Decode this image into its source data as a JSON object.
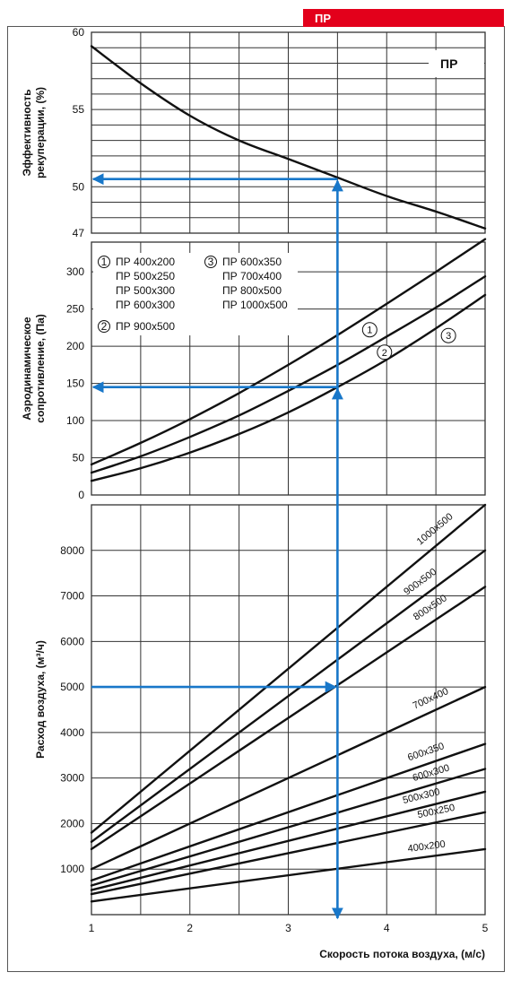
{
  "header_badge": "ПР",
  "colors": {
    "badge": "#e3001b",
    "arrow": "#1877c9",
    "curve": "#111111",
    "grid": "#333333"
  },
  "x_axis": {
    "label": "Скорость потока воздуха, (м/с)",
    "ticks": [
      "1",
      "2",
      "3",
      "4",
      "5"
    ]
  },
  "chart_data": [
    {
      "type": "line",
      "title": "ПР",
      "ylabel": [
        "Эффективность",
        "рекуперации, (%)"
      ],
      "xlim": [
        1,
        5
      ],
      "ylim": [
        47,
        60
      ],
      "y_ticks": [
        "60",
        "55",
        "50",
        "47"
      ],
      "grid": true,
      "series": [
        {
          "x": [
            1,
            1.5,
            2,
            2.5,
            3,
            3.5,
            4,
            4.5,
            5
          ],
          "y": [
            59.1,
            56.7,
            54.6,
            53.0,
            51.8,
            50.6,
            49.4,
            48.4,
            47.3
          ]
        }
      ],
      "guide": {
        "x": 3.5,
        "y": 50.5
      }
    },
    {
      "type": "line",
      "ylabel": [
        "Аэродинамическое",
        "сопротивление, (Па)"
      ],
      "xlim": [
        1,
        5
      ],
      "ylim": [
        0,
        340
      ],
      "y_ticks": [
        "300",
        "250",
        "200",
        "150",
        "100",
        "50",
        "0"
      ],
      "grid": true,
      "legend": [
        {
          "marker": "1",
          "items": [
            "ПР 400x200",
            "ПР 500x250",
            "ПР 500x300",
            "ПР 600x300"
          ]
        },
        {
          "marker": "2",
          "items": [
            "ПР 900x500"
          ]
        },
        {
          "marker": "3",
          "items": [
            "ПР 600x350",
            "ПР 700x400",
            "ПР 800x500",
            "ПР 1000x500"
          ]
        }
      ],
      "series": [
        {
          "name": "1",
          "x": [
            1,
            1.5,
            2,
            2.5,
            3,
            3.5,
            4,
            4.5,
            5
          ],
          "y": [
            41,
            70,
            102,
            137,
            175,
            215,
            257,
            300,
            344
          ]
        },
        {
          "name": "2",
          "x": [
            1,
            1.5,
            2,
            2.5,
            3,
            3.5,
            4,
            4.5,
            5
          ],
          "y": [
            30,
            52,
            78,
            107,
            140,
            175,
            213,
            252,
            294
          ]
        },
        {
          "name": "3",
          "x": [
            1,
            1.5,
            2,
            2.5,
            3,
            3.5,
            4,
            4.5,
            5
          ],
          "y": [
            19,
            36,
            57,
            82,
            111,
            145,
            182,
            224,
            269
          ]
        }
      ],
      "guide": {
        "x": 3.5,
        "y": 145
      }
    },
    {
      "type": "line",
      "ylabel": "Расход воздуха, (м³/ч)",
      "xlim": [
        1,
        5
      ],
      "ylim": [
        0,
        9000
      ],
      "y_ticks": [
        "8000",
        "7000",
        "6000",
        "5000",
        "4000",
        "3000",
        "2000",
        "1000"
      ],
      "grid": true,
      "series": [
        {
          "name": "1000x500",
          "x": [
            1,
            5
          ],
          "y": [
            1800,
            9000
          ]
        },
        {
          "name": "900x500",
          "x": [
            1,
            5
          ],
          "y": [
            1600,
            8000
          ]
        },
        {
          "name": "800x500",
          "x": [
            1,
            5
          ],
          "y": [
            1440,
            7200
          ]
        },
        {
          "name": "700x400",
          "x": [
            1,
            5
          ],
          "y": [
            1000,
            5000
          ]
        },
        {
          "name": "600x350",
          "x": [
            1,
            5
          ],
          "y": [
            750,
            3750
          ]
        },
        {
          "name": "600x300",
          "x": [
            1,
            5
          ],
          "y": [
            640,
            3200
          ]
        },
        {
          "name": "500x300",
          "x": [
            1,
            5
          ],
          "y": [
            540,
            2700
          ]
        },
        {
          "name": "500x250",
          "x": [
            1,
            5
          ],
          "y": [
            450,
            2250
          ]
        },
        {
          "name": "400x200",
          "x": [
            1,
            5
          ],
          "y": [
            290,
            1440
          ]
        }
      ],
      "guide": {
        "x": 3.5,
        "y": 5000
      }
    }
  ]
}
